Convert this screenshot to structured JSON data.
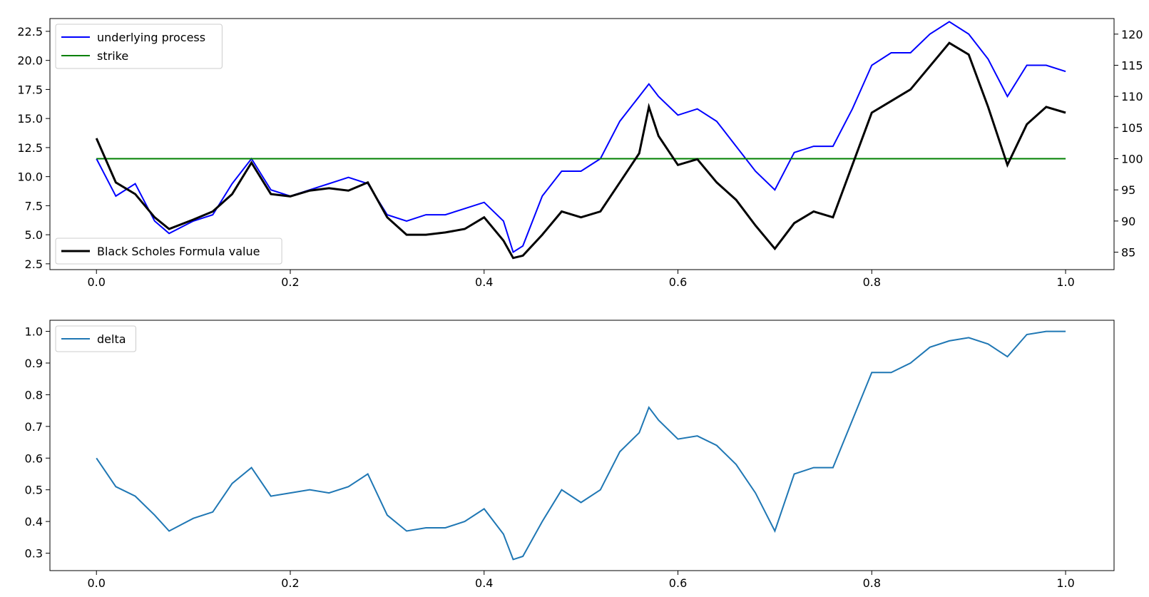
{
  "chart_data": [
    {
      "type": "line",
      "x_ticks": [
        0.0,
        0.2,
        0.4,
        0.6,
        0.8,
        1.0
      ],
      "x_tick_labels": [
        "0.0",
        "0.2",
        "0.4",
        "0.6",
        "0.8",
        "1.0"
      ],
      "xlim": [
        -0.048,
        1.05
      ],
      "y_left_ticks": [
        2.5,
        5.0,
        7.5,
        10.0,
        12.5,
        15.0,
        17.5,
        20.0,
        22.5
      ],
      "y_left_tick_labels": [
        "2.5",
        "5.0",
        "7.5",
        "10.0",
        "12.5",
        "15.0",
        "17.5",
        "20.0",
        "22.5"
      ],
      "ylim_left": [
        2.0,
        23.6
      ],
      "y_right_ticks": [
        85,
        90,
        95,
        100,
        105,
        110,
        115,
        120
      ],
      "y_right_tick_labels": [
        "85",
        "90",
        "95",
        "100",
        "105",
        "110",
        "115",
        "120"
      ],
      "ylim_right": [
        82.2,
        122.5
      ],
      "legend_upper": {
        "placement": "upper-left",
        "entries": [
          "underlying process",
          "strike"
        ]
      },
      "legend_lower": {
        "placement": "lower-left",
        "entries": [
          "Black Scholes Formula value"
        ]
      },
      "colors": {
        "underlying": "#0000ff",
        "strike": "#008000",
        "bs": "#000000"
      },
      "series": [
        {
          "name": "underlying process",
          "axis": "right",
          "x": [
            0.0,
            0.02,
            0.04,
            0.06,
            0.075,
            0.1,
            0.12,
            0.14,
            0.16,
            0.18,
            0.2,
            0.22,
            0.24,
            0.26,
            0.28,
            0.3,
            0.32,
            0.34,
            0.36,
            0.38,
            0.4,
            0.42,
            0.43,
            0.44,
            0.46,
            0.48,
            0.5,
            0.52,
            0.54,
            0.56,
            0.57,
            0.58,
            0.6,
            0.62,
            0.64,
            0.66,
            0.68,
            0.7,
            0.72,
            0.74,
            0.76,
            0.78,
            0.8,
            0.82,
            0.84,
            0.86,
            0.88,
            0.9,
            0.92,
            0.94,
            0.96,
            0.98,
            1.0
          ],
          "values": [
            100,
            94,
            96,
            90,
            88,
            90,
            91,
            96,
            100,
            95,
            94,
            95,
            96,
            97,
            96,
            91,
            90,
            91,
            91,
            92,
            93,
            90,
            85,
            86,
            94,
            98,
            98,
            100,
            106,
            110,
            112,
            110,
            107,
            108,
            106,
            102,
            98,
            95,
            101,
            102,
            102,
            108,
            115,
            117,
            117,
            120,
            122,
            120,
            116,
            110,
            115,
            115,
            114
          ]
        },
        {
          "name": "strike",
          "axis": "right",
          "x": [
            0.0,
            1.0
          ],
          "values": [
            100,
            100
          ]
        },
        {
          "name": "Black Scholes Formula value",
          "axis": "left",
          "x": [
            0.0,
            0.02,
            0.04,
            0.06,
            0.075,
            0.1,
            0.12,
            0.14,
            0.16,
            0.18,
            0.2,
            0.22,
            0.24,
            0.26,
            0.28,
            0.3,
            0.32,
            0.34,
            0.36,
            0.38,
            0.4,
            0.42,
            0.43,
            0.44,
            0.46,
            0.48,
            0.5,
            0.52,
            0.54,
            0.56,
            0.57,
            0.58,
            0.6,
            0.62,
            0.64,
            0.66,
            0.68,
            0.7,
            0.72,
            0.74,
            0.76,
            0.78,
            0.8,
            0.82,
            0.84,
            0.86,
            0.88,
            0.9,
            0.92,
            0.94,
            0.96,
            0.98,
            1.0
          ],
          "values": [
            13.3,
            9.5,
            8.5,
            6.5,
            5.5,
            6.3,
            7.0,
            8.5,
            11.2,
            8.5,
            8.3,
            8.8,
            9.0,
            8.8,
            9.5,
            6.5,
            5.0,
            5.0,
            5.2,
            5.5,
            6.5,
            4.5,
            3.0,
            3.2,
            5.0,
            7.0,
            6.5,
            7.0,
            9.5,
            12.0,
            16.0,
            13.5,
            11.0,
            11.5,
            9.5,
            8.0,
            5.8,
            3.8,
            6.0,
            7.0,
            6.5,
            11.0,
            15.5,
            16.5,
            17.5,
            19.5,
            21.5,
            20.5,
            16.0,
            11.0,
            14.5,
            16.0,
            15.5
          ]
        }
      ]
    },
    {
      "type": "line",
      "x_ticks": [
        0.0,
        0.2,
        0.4,
        0.6,
        0.8,
        1.0
      ],
      "x_tick_labels": [
        "0.0",
        "0.2",
        "0.4",
        "0.6",
        "0.8",
        "1.0"
      ],
      "xlim": [
        -0.048,
        1.05
      ],
      "y_ticks": [
        0.3,
        0.4,
        0.5,
        0.6,
        0.7,
        0.8,
        0.9,
        1.0
      ],
      "y_tick_labels": [
        "0.3",
        "0.4",
        "0.5",
        "0.6",
        "0.7",
        "0.8",
        "0.9",
        "1.0"
      ],
      "ylim": [
        0.245,
        1.035
      ],
      "legend": {
        "placement": "upper-left",
        "entries": [
          "delta"
        ]
      },
      "colors": {
        "delta": "#1f77b4"
      },
      "series": [
        {
          "name": "delta",
          "x": [
            0.0,
            0.02,
            0.04,
            0.06,
            0.075,
            0.1,
            0.12,
            0.14,
            0.16,
            0.18,
            0.2,
            0.22,
            0.24,
            0.26,
            0.28,
            0.3,
            0.32,
            0.34,
            0.36,
            0.38,
            0.4,
            0.42,
            0.43,
            0.44,
            0.46,
            0.48,
            0.5,
            0.52,
            0.54,
            0.56,
            0.57,
            0.58,
            0.6,
            0.62,
            0.64,
            0.66,
            0.68,
            0.7,
            0.72,
            0.74,
            0.76,
            0.78,
            0.8,
            0.82,
            0.84,
            0.86,
            0.88,
            0.9,
            0.92,
            0.94,
            0.96,
            0.98,
            1.0
          ],
          "values": [
            0.6,
            0.51,
            0.48,
            0.42,
            0.37,
            0.41,
            0.43,
            0.52,
            0.57,
            0.48,
            0.49,
            0.5,
            0.49,
            0.51,
            0.55,
            0.42,
            0.37,
            0.38,
            0.38,
            0.4,
            0.44,
            0.36,
            0.28,
            0.29,
            0.4,
            0.5,
            0.46,
            0.5,
            0.62,
            0.68,
            0.76,
            0.72,
            0.66,
            0.67,
            0.64,
            0.58,
            0.49,
            0.37,
            0.55,
            0.57,
            0.57,
            0.72,
            0.87,
            0.87,
            0.9,
            0.95,
            0.97,
            0.98,
            0.96,
            0.92,
            0.99,
            1.0,
            1.0
          ]
        }
      ]
    }
  ]
}
